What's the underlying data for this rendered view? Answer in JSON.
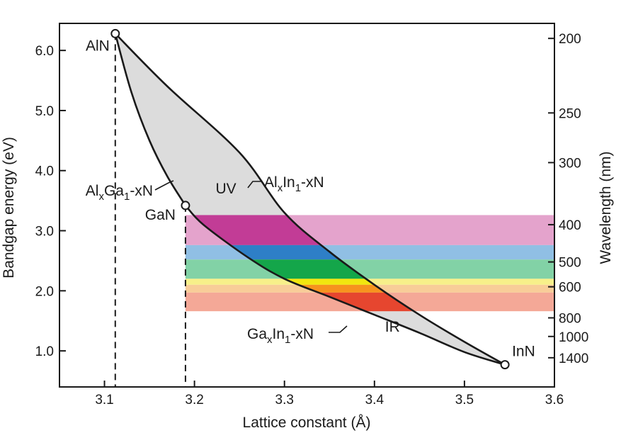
{
  "chart_data": {
    "type": "area",
    "title": "",
    "xlabel": "Lattice constant (Å)",
    "ylabel": "Bandgap energy (eV)",
    "y2label": "Wavelength (nm)",
    "xlim": [
      3.05,
      3.6
    ],
    "ylim": [
      0.4,
      6.45
    ],
    "x_ticks": [
      3.1,
      3.2,
      3.3,
      3.4,
      3.5,
      3.6
    ],
    "y_ticks": [
      1.0,
      2.0,
      3.0,
      4.0,
      5.0,
      6.0
    ],
    "y2_ticks_nm": [
      200,
      250,
      300,
      400,
      500,
      600,
      800,
      1000,
      1400
    ],
    "grid": false,
    "materials": [
      {
        "name": "AlN",
        "lattice": 3.112,
        "bandgap": 6.28
      },
      {
        "name": "GaN",
        "lattice": 3.19,
        "bandgap": 3.42
      },
      {
        "name": "InN",
        "lattice": 3.545,
        "bandgap": 0.77
      }
    ],
    "curves": [
      {
        "name": "AlxGa1-xN",
        "label_main": [
          "Al",
          "Ga",
          "-xN"
        ],
        "label_sub": [
          "x",
          "1"
        ],
        "from": "AlN",
        "to": "GaN",
        "points": [
          [
            3.112,
            6.28
          ],
          [
            3.13,
            5.3
          ],
          [
            3.15,
            4.5
          ],
          [
            3.17,
            3.9
          ],
          [
            3.19,
            3.42
          ]
        ]
      },
      {
        "name": "AlxIn1-xN",
        "label_main": [
          "Al",
          "In",
          "-xN"
        ],
        "label_sub": [
          "x",
          "1"
        ],
        "from": "AlN",
        "to": "InN",
        "points": [
          [
            3.112,
            6.28
          ],
          [
            3.17,
            5.4
          ],
          [
            3.25,
            4.3
          ],
          [
            3.3,
            3.3
          ],
          [
            3.35,
            2.65
          ],
          [
            3.4,
            2.1
          ],
          [
            3.45,
            1.6
          ],
          [
            3.5,
            1.15
          ],
          [
            3.545,
            0.77
          ]
        ]
      },
      {
        "name": "GaxIn1-xN",
        "label_main": [
          "Ga",
          "In",
          "-xN"
        ],
        "label_sub": [
          "x",
          "1"
        ],
        "from": "GaN",
        "to": "InN",
        "points": [
          [
            3.19,
            3.42
          ],
          [
            3.21,
            3.1
          ],
          [
            3.26,
            2.55
          ],
          [
            3.3,
            2.2
          ],
          [
            3.35,
            1.9
          ],
          [
            3.4,
            1.6
          ],
          [
            3.45,
            1.3
          ],
          [
            3.5,
            0.98
          ],
          [
            3.545,
            0.77
          ]
        ]
      }
    ],
    "dashed_verticals": [
      {
        "x": 3.112,
        "from_y": 6.28
      },
      {
        "x": 3.19,
        "from_y": 3.42
      }
    ],
    "region_labels": [
      {
        "text": "UV",
        "x": 3.235,
        "y": 3.62
      },
      {
        "text": "IR",
        "x": 3.42,
        "y": 1.32
      }
    ],
    "visible_bands": [
      {
        "color": "#c23c96",
        "light": "#e4a3cc",
        "ymin": 2.76,
        "ymax": 3.26
      },
      {
        "color": "#2e7fc7",
        "light": "#90bfe4",
        "ymin": 2.52,
        "ymax": 2.76
      },
      {
        "color": "#14a64a",
        "light": "#82d2a6",
        "ymin": 2.2,
        "ymax": 2.52
      },
      {
        "color": "#f2e70f",
        "light": "#f7f08a",
        "ymin": 2.1,
        "ymax": 2.2
      },
      {
        "color": "#f7931e",
        "light": "#f8cd98",
        "ymin": 1.97,
        "ymax": 2.1
      },
      {
        "color": "#e6462f",
        "light": "#f4a897",
        "ymin": 1.66,
        "ymax": 1.97
      }
    ],
    "alloy_fill_color": "#dcdcdc"
  }
}
